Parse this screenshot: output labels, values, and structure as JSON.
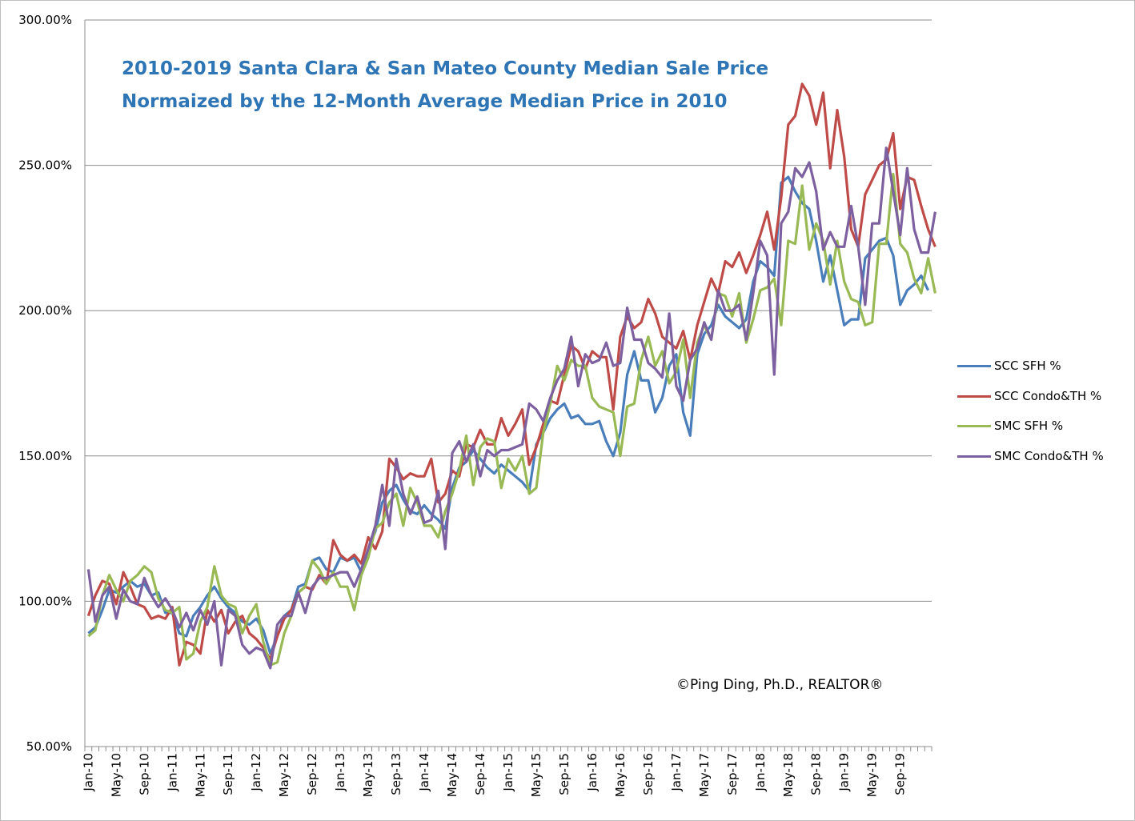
{
  "chart_data": {
    "type": "line",
    "title": [
      "2010-2019 Santa Clara & San Mateo County Median Sale Price",
      "Normaized by the 12-Month Average Median Price in 2010"
    ],
    "annotation": "©Ping Ding, Ph.D., REALTOR®",
    "ylim": [
      50,
      300
    ],
    "yticks": [
      50,
      100,
      150,
      200,
      250,
      300
    ],
    "ytick_labels": [
      "50.00%",
      "100.00%",
      "150.00%",
      "200.00%",
      "250.00%",
      "300.00%"
    ],
    "grid": "horizontal",
    "legend_position": "right",
    "x_start": "Jan-10",
    "x_tick_labels": [
      "Jan-10",
      "May-10",
      "Sep-10",
      "Jan-11",
      "May-11",
      "Sep-11",
      "Jan-12",
      "May-12",
      "Sep-12",
      "Jan-13",
      "May-13",
      "Sep-13",
      "Jan-14",
      "May-14",
      "Sep-14",
      "Jan-15",
      "May-15",
      "Sep-15",
      "Jan-16",
      "May-16",
      "Sep-16",
      "Jan-17",
      "May-17",
      "Sep-17",
      "Jan-18",
      "May-18",
      "Sep-18",
      "Jan-19",
      "May-19",
      "Sep-19"
    ],
    "series": [
      {
        "name": "SCC SFH %",
        "color": "#4a7ebb",
        "values": [
          89,
          91,
          97,
          104,
          103,
          105,
          107,
          105,
          106,
          102,
          103,
          96,
          96,
          89,
          88,
          95,
          98,
          102,
          105,
          101,
          98,
          96,
          93,
          92,
          94,
          90,
          82,
          88,
          95,
          97,
          105,
          106,
          114,
          115,
          111,
          110,
          115,
          114,
          115,
          110,
          118,
          124,
          134,
          138,
          140,
          135,
          131,
          130,
          133,
          130,
          128,
          125,
          139,
          146,
          148,
          152,
          149,
          146,
          144,
          147,
          145,
          143,
          141,
          138,
          154,
          158,
          163,
          166,
          168,
          163,
          164,
          161,
          161,
          162,
          155,
          150,
          158,
          178,
          186,
          176,
          176,
          165,
          170,
          181,
          185,
          165,
          157,
          185,
          192,
          195,
          202,
          198,
          196,
          194,
          197,
          210,
          217,
          215,
          212,
          244,
          246,
          241,
          237,
          235,
          224,
          210,
          219,
          207,
          195,
          197,
          197,
          218,
          221,
          224,
          225,
          219,
          202,
          207,
          209,
          212,
          207
        ]
      },
      {
        "name": "SCC Condo&TH %",
        "color": "#be4b48",
        "values": [
          95,
          102,
          107,
          106,
          99,
          110,
          105,
          99,
          98,
          94,
          95,
          94,
          98,
          78,
          86,
          85,
          82,
          97,
          93,
          97,
          89,
          93,
          95,
          89,
          87,
          84,
          80,
          88,
          94,
          97,
          103,
          105,
          104,
          109,
          106,
          121,
          116,
          114,
          116,
          113,
          122,
          118,
          124,
          149,
          146,
          142,
          144,
          143,
          143,
          149,
          134,
          137,
          145,
          143,
          154,
          153,
          159,
          154,
          154,
          163,
          157,
          161,
          166,
          147,
          153,
          161,
          169,
          168,
          178,
          188,
          186,
          180,
          186,
          184,
          184,
          166,
          191,
          198,
          194,
          196,
          204,
          199,
          191,
          189,
          187,
          193,
          183,
          195,
          203,
          211,
          206,
          217,
          215,
          220,
          213,
          219,
          226,
          234,
          221,
          239,
          264,
          267,
          278,
          274,
          264,
          275,
          249,
          269,
          253,
          228,
          222,
          240,
          245,
          250,
          252,
          261,
          235,
          246,
          245,
          236,
          228,
          222
        ]
      },
      {
        "name": "SMC SFH %",
        "color": "#98b954",
        "values": [
          88,
          90,
          102,
          109,
          104,
          100,
          107,
          109,
          112,
          110,
          101,
          97,
          96,
          98,
          80,
          82,
          93,
          98,
          112,
          102,
          99,
          98,
          89,
          95,
          99,
          86,
          78,
          79,
          89,
          95,
          103,
          105,
          114,
          111,
          106,
          110,
          105,
          105,
          97,
          109,
          115,
          125,
          127,
          134,
          137,
          126,
          139,
          134,
          126,
          126,
          122,
          131,
          137,
          145,
          157,
          140,
          153,
          156,
          155,
          139,
          149,
          145,
          150,
          137,
          139,
          158,
          168,
          181,
          176,
          183,
          181,
          181,
          170,
          167,
          166,
          165,
          150,
          167,
          168,
          183,
          191,
          181,
          186,
          175,
          179,
          190,
          170,
          189,
          195,
          190,
          206,
          205,
          198,
          206,
          189,
          197,
          207,
          208,
          211,
          195,
          224,
          223,
          243,
          221,
          230,
          224,
          209,
          224,
          210,
          204,
          203,
          195,
          196,
          223,
          223,
          247,
          223,
          220,
          211,
          206,
          218,
          206
        ]
      },
      {
        "name": "SMC Condo&TH %",
        "color": "#7d60a0",
        "values": [
          111,
          93,
          102,
          105,
          94,
          104,
          100,
          99,
          108,
          102,
          98,
          101,
          97,
          91,
          96,
          90,
          97,
          92,
          100,
          78,
          97,
          95,
          85,
          82,
          84,
          83,
          77,
          92,
          95,
          95,
          103,
          96,
          105,
          108,
          108,
          109,
          110,
          110,
          105,
          111,
          118,
          126,
          140,
          126,
          149,
          137,
          130,
          136,
          127,
          128,
          138,
          118,
          151,
          155,
          148,
          154,
          143,
          152,
          150,
          152,
          152,
          153,
          154,
          168,
          166,
          162,
          170,
          176,
          180,
          191,
          174,
          185,
          182,
          183,
          189,
          181,
          182,
          201,
          190,
          190,
          182,
          180,
          177,
          199,
          174,
          169,
          183,
          187,
          196,
          190,
          207,
          200,
          200,
          202,
          190,
          206,
          224,
          219,
          178,
          230,
          234,
          249,
          246,
          251,
          241,
          221,
          227,
          222,
          222,
          236,
          222,
          202,
          230,
          230,
          256,
          241,
          226,
          249,
          228,
          220,
          220,
          234
        ]
      }
    ]
  }
}
